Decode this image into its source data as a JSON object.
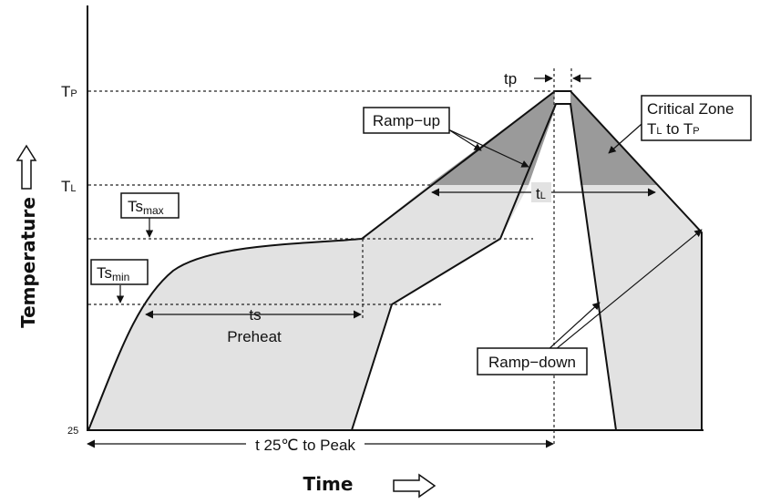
{
  "axes": {
    "y_title": "Temperature",
    "x_title": "Time",
    "y_labels": {
      "tp_main": "T",
      "tp_sub": "P",
      "tl_main": "T",
      "tl_sub": "L",
      "origin": "25"
    }
  },
  "annotations": {
    "tp": "tp",
    "tl_main": "t",
    "tl_sub": "L",
    "ts": "ts",
    "preheat": "Preheat",
    "total": "t 25℃ to Peak"
  },
  "boxes": {
    "ramp_up": "Ramp−up",
    "ramp_down": "Ramp−down",
    "critical_zone_line1": "Critical Zone",
    "critical_zone_line2_a": "T",
    "critical_zone_line2_b": "L",
    "critical_zone_line2_c": " to T",
    "critical_zone_line2_d": "P",
    "ts_max_main": "Ts",
    "ts_max_sub": "max",
    "ts_min_main": "Ts",
    "ts_min_sub": "min"
  },
  "colors": {
    "light_fill": "#e2e2e2",
    "dark_fill": "#9a9a9a",
    "line": "#111111"
  }
}
